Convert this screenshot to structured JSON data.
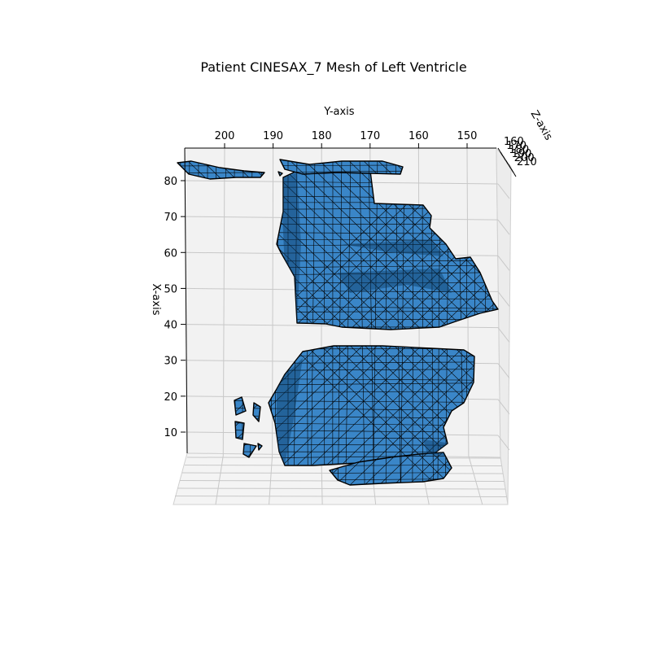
{
  "chart_data": {
    "type": "3d-mesh",
    "title": "Patient CINESAX_7 Mesh of Left Ventricle",
    "ylabel": "Y-axis",
    "xlabel": "X-axis",
    "zlabel": "Z-axis",
    "y_ticks": [
      "200",
      "190",
      "180",
      "170",
      "160",
      "150"
    ],
    "x_ticks": [
      "80",
      "70",
      "60",
      "50",
      "40",
      "30",
      "20",
      "10"
    ],
    "z_ticks": [
      "160",
      "170",
      "180",
      "190",
      "200",
      "210"
    ],
    "ylim": [
      145,
      210
    ],
    "xlim": [
      0,
      85
    ],
    "zlim": [
      160,
      210
    ],
    "face_color": "#3a86c8",
    "edge_color": "#000000",
    "pane_color": "#f2f2f2",
    "grid": true,
    "mesh_regions": [
      {
        "name": "upper-ventricle-volume"
      },
      {
        "name": "lower-ventricle-volume"
      },
      {
        "name": "top-slice-fragments"
      },
      {
        "name": "bottom-slice-fragments"
      },
      {
        "name": "small-outlier-fragments"
      }
    ]
  }
}
